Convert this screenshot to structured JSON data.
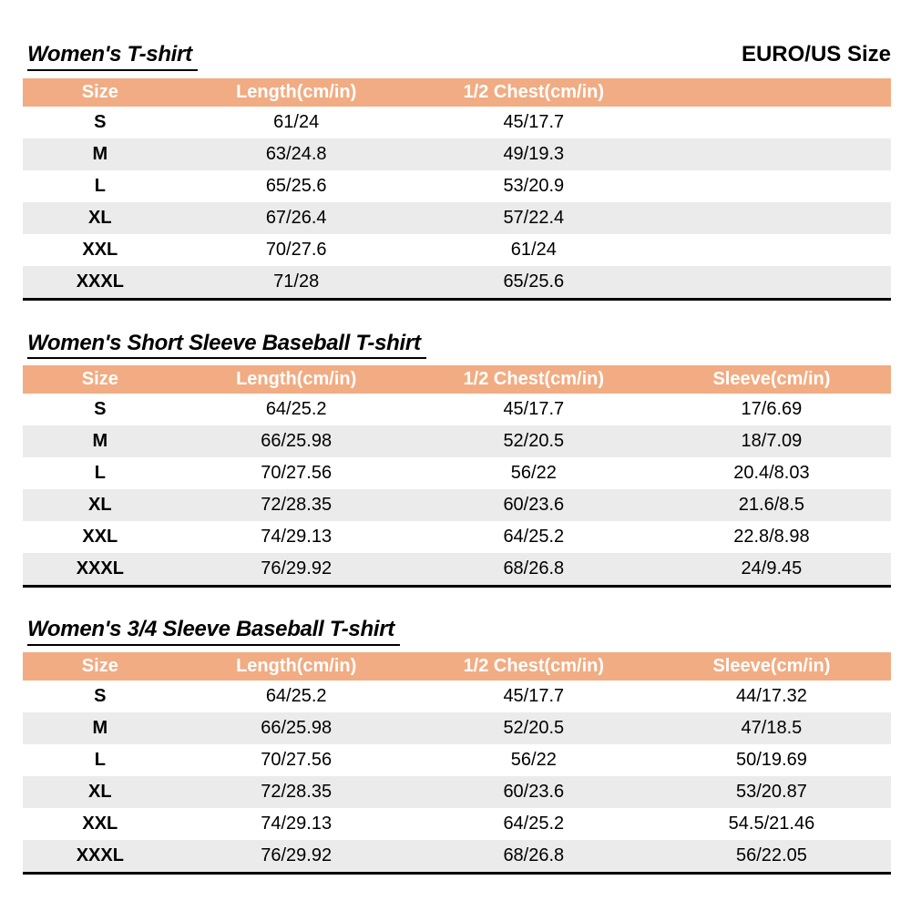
{
  "page": {
    "corner_label": "EURO/US Size"
  },
  "colors": {
    "header_bg": "#F1AC83",
    "row_alt_bg": "#EBEBEB",
    "header_text": "#FFFFFF",
    "table_border": "#000000"
  },
  "tables": [
    {
      "title": "Women's T-shirt",
      "columns": [
        "Size",
        "Length(cm/in)",
        "1/2 Chest(cm/in)",
        ""
      ],
      "rows": [
        [
          "S",
          "61/24",
          "45/17.7",
          ""
        ],
        [
          "M",
          "63/24.8",
          "49/19.3",
          ""
        ],
        [
          "L",
          "65/25.6",
          "53/20.9",
          ""
        ],
        [
          "XL",
          "67/26.4",
          "57/22.4",
          ""
        ],
        [
          "XXL",
          "70/27.6",
          "61/24",
          ""
        ],
        [
          "XXXL",
          "71/28",
          "65/25.6",
          ""
        ]
      ]
    },
    {
      "title": "Women's Short Sleeve Baseball T-shirt",
      "columns": [
        "Size",
        "Length(cm/in)",
        "1/2 Chest(cm/in)",
        "Sleeve(cm/in)"
      ],
      "rows": [
        [
          "S",
          "64/25.2",
          "45/17.7",
          "17/6.69"
        ],
        [
          "M",
          "66/25.98",
          "52/20.5",
          "18/7.09"
        ],
        [
          "L",
          "70/27.56",
          "56/22",
          "20.4/8.03"
        ],
        [
          "XL",
          "72/28.35",
          "60/23.6",
          "21.6/8.5"
        ],
        [
          "XXL",
          "74/29.13",
          "64/25.2",
          "22.8/8.98"
        ],
        [
          "XXXL",
          "76/29.92",
          "68/26.8",
          "24/9.45"
        ]
      ]
    },
    {
      "title": "Women's 3/4 Sleeve Baseball T-shirt",
      "columns": [
        "Size",
        "Length(cm/in)",
        "1/2 Chest(cm/in)",
        "Sleeve(cm/in)"
      ],
      "rows": [
        [
          "S",
          "64/25.2",
          "45/17.7",
          "44/17.32"
        ],
        [
          "M",
          "66/25.98",
          "52/20.5",
          "47/18.5"
        ],
        [
          "L",
          "70/27.56",
          "56/22",
          "50/19.69"
        ],
        [
          "XL",
          "72/28.35",
          "60/23.6",
          "53/20.87"
        ],
        [
          "XXL",
          "74/29.13",
          "64/25.2",
          "54.5/21.46"
        ],
        [
          "XXXL",
          "76/29.92",
          "68/26.8",
          "56/22.05"
        ]
      ]
    }
  ]
}
